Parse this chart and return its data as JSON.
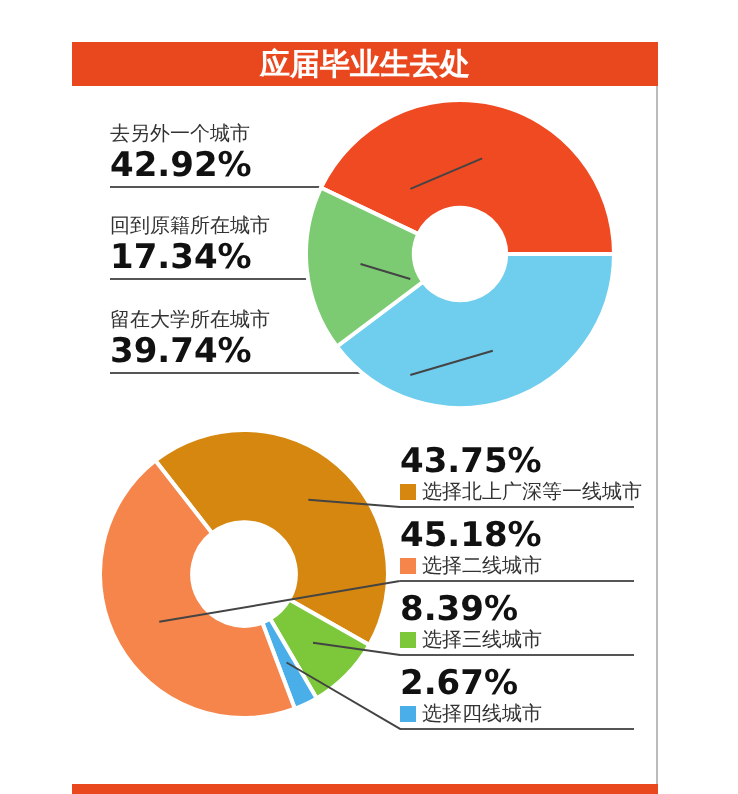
{
  "chart_data": [
    {
      "type": "donut",
      "title": "应届毕业生去处",
      "categories": [
        "去另外一个城市",
        "留在大学所在城市",
        "回到原籍所在城市"
      ],
      "values": [
        42.92,
        39.74,
        17.34
      ],
      "colors": [
        "#f04a22",
        "#6fcdee",
        "#7ccb72"
      ],
      "value_labels": [
        "42.92%",
        "39.74%",
        "17.34%"
      ],
      "legend": false
    },
    {
      "type": "donut",
      "categories": [
        "选择北上广深等一线城市",
        "选择三线城市",
        "选择四线城市",
        "选择二线城市"
      ],
      "values": [
        43.75,
        8.39,
        2.67,
        45.18
      ],
      "colors": [
        "#d6870f",
        "#7cc83a",
        "#4aaee8",
        "#f5854a"
      ],
      "value_labels": [
        "43.75%",
        "8.39%",
        "2.67%",
        "45.18%"
      ],
      "legend": "right"
    }
  ]
}
